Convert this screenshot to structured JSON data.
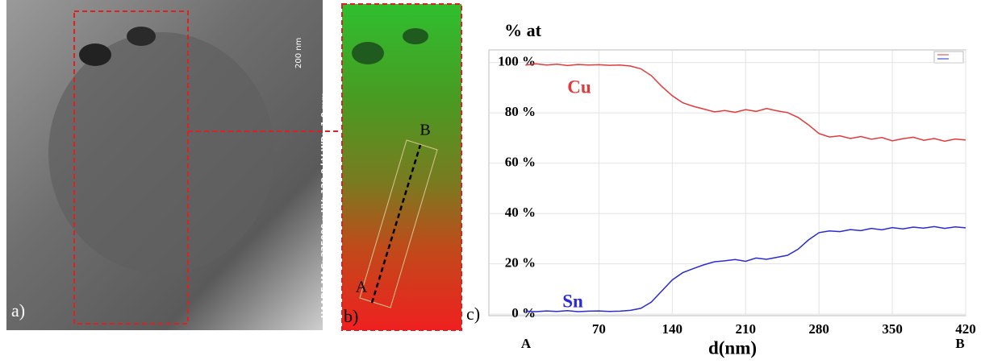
{
  "figure": {
    "panel_labels": [
      "a)",
      "b)",
      "c)"
    ],
    "micrograph_info": "HAADF  MAG: 225000 x  HV: 120.0 kV  WD: -1.0 mm",
    "scale_bar": "200 nm",
    "line_points": [
      "A",
      "B"
    ]
  },
  "chart_data": {
    "type": "line",
    "y_title": "% at",
    "x_title": "d(nm)",
    "x_end_labels": [
      "A",
      "B"
    ],
    "x": [
      0,
      10,
      20,
      30,
      40,
      50,
      60,
      70,
      80,
      90,
      100,
      110,
      120,
      130,
      140,
      150,
      160,
      170,
      180,
      190,
      200,
      210,
      220,
      230,
      240,
      250,
      260,
      270,
      280,
      290,
      300,
      310,
      320,
      330,
      340,
      350,
      360,
      370,
      380,
      390,
      400,
      410,
      420
    ],
    "series": [
      {
        "name": "Cu",
        "color": "#e03a3a",
        "values": [
          99,
          99.5,
          99,
          99.3,
          98.8,
          99.2,
          99,
          99.1,
          98.9,
          99,
          98.6,
          97.5,
          94.8,
          90.5,
          86.8,
          84,
          82.6,
          81.5,
          80.4,
          80.9,
          80.2,
          81.3,
          80.6,
          81.7,
          80.8,
          80.1,
          78.2,
          75.2,
          71.8,
          70.4,
          70.9,
          69.8,
          70.6,
          69.5,
          70.2,
          68.9,
          69.7,
          70.3,
          69.1,
          69.8,
          68.7,
          69.6,
          69.2
        ]
      },
      {
        "name": "Sn",
        "color": "#2a2ad6",
        "values": [
          1.2,
          1.0,
          1.3,
          1.1,
          1.4,
          1.0,
          1.2,
          1.3,
          1.1,
          1.2,
          1.5,
          2.3,
          4.8,
          9.2,
          13.6,
          16.5,
          18.1,
          19.6,
          20.8,
          21.2,
          21.7,
          21.0,
          22.3,
          21.8,
          22.6,
          23.4,
          25.8,
          29.5,
          32.4,
          33.1,
          32.8,
          33.6,
          33.2,
          34.1,
          33.5,
          34.4,
          33.9,
          34.6,
          34.2,
          34.8,
          34.1,
          34.7,
          34.3
        ]
      }
    ],
    "xlim": [
      -35,
      420
    ],
    "xticks": [
      70,
      140,
      210,
      280,
      350,
      420
    ],
    "ylim": [
      -0.6,
      105
    ],
    "yticks": [
      {
        "value": 0,
        "label": "0 %"
      },
      {
        "value": 20,
        "label": "20 %"
      },
      {
        "value": 40,
        "label": "40 %"
      },
      {
        "value": 60,
        "label": "60 %"
      },
      {
        "value": 80,
        "label": "80 %"
      },
      {
        "value": 100,
        "label": "100 %"
      }
    ],
    "grid": true
  }
}
